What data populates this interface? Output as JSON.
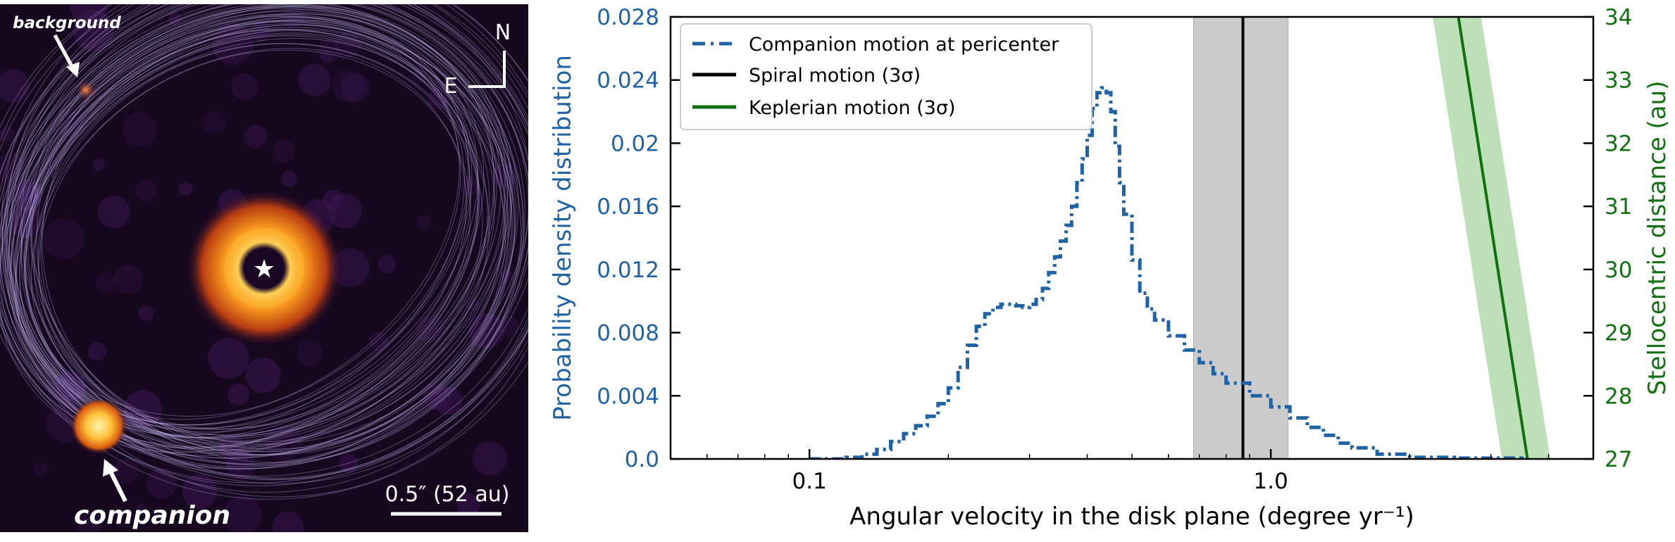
{
  "image_panel": {
    "labels": {
      "background": "background",
      "companion": "companion",
      "north": "N",
      "east": "E",
      "scale_bar": "0.5″ (52 au)"
    },
    "colors": {
      "background": "#16081f",
      "disk_outer": "#e0640f",
      "disk_inner": "#ffcb45",
      "orbit_lines": "#c7bcf5"
    }
  },
  "chart_data": {
    "type": "line",
    "xlabel": "Angular velocity in the disk plane (degree yr⁻¹)",
    "ylabel": "Probability density distribution",
    "ylabel_right": "Stellocentric distance (au)",
    "x_scale": "log",
    "xlim": [
      0.05,
      5.0
    ],
    "ylim": [
      0,
      0.028
    ],
    "ylim_right": [
      27,
      34
    ],
    "xticks": [
      0.1,
      1.0
    ],
    "xtick_labels": [
      "0.1",
      "1.0"
    ],
    "yticks": [
      0.0,
      0.004,
      0.008,
      0.012,
      0.016,
      0.02,
      0.024,
      0.028
    ],
    "ytick_labels": [
      "0.0",
      "0.004",
      "0.008",
      "0.012",
      "0.016",
      "0.02",
      "0.024",
      "0.028"
    ],
    "yticks_right": [
      27,
      28,
      29,
      30,
      31,
      32,
      33,
      34
    ],
    "ytick_labels_right": [
      "27",
      "28",
      "29",
      "30",
      "31",
      "32",
      "33",
      "34"
    ],
    "legend_position": "top-left",
    "colors": {
      "companion": "#1f62a5",
      "spiral": "#000000",
      "keplerian": "#127012",
      "keplerian_band": "#a8d5a0",
      "spiral_band": "#cccccc",
      "left_axis": "#1f62a5",
      "right_axis": "#127012"
    },
    "series": [
      {
        "name": "Companion motion at pericenter",
        "style": "dash-dot step",
        "x": [
          0.1,
          0.12,
          0.13,
          0.14,
          0.15,
          0.16,
          0.17,
          0.18,
          0.19,
          0.2,
          0.21,
          0.22,
          0.23,
          0.24,
          0.25,
          0.26,
          0.27,
          0.28,
          0.29,
          0.3,
          0.31,
          0.32,
          0.33,
          0.34,
          0.35,
          0.36,
          0.37,
          0.38,
          0.39,
          0.4,
          0.41,
          0.42,
          0.43,
          0.44,
          0.45,
          0.46,
          0.47,
          0.48,
          0.5,
          0.52,
          0.54,
          0.56,
          0.6,
          0.65,
          0.7,
          0.75,
          0.8,
          0.9,
          1.0,
          1.1,
          1.2,
          1.3,
          1.4,
          1.5,
          1.7,
          2.0,
          2.5,
          3.5
        ],
        "y": [
          0.0,
          0.0001,
          0.0003,
          0.0006,
          0.0011,
          0.0016,
          0.0021,
          0.0027,
          0.0035,
          0.0045,
          0.0058,
          0.0072,
          0.0084,
          0.0092,
          0.0096,
          0.0098,
          0.0098,
          0.0097,
          0.0096,
          0.0098,
          0.0101,
          0.0108,
          0.0118,
          0.0128,
          0.0138,
          0.0148,
          0.016,
          0.0175,
          0.019,
          0.0205,
          0.0222,
          0.0232,
          0.0235,
          0.0232,
          0.022,
          0.0198,
          0.0175,
          0.0155,
          0.0126,
          0.0105,
          0.0095,
          0.0088,
          0.0078,
          0.0069,
          0.0061,
          0.0054,
          0.0048,
          0.004,
          0.0033,
          0.0026,
          0.002,
          0.0015,
          0.001,
          0.0007,
          0.0003,
          0.0001,
          5e-05,
          0.0
        ]
      },
      {
        "name": "Spiral motion (3σ)",
        "type": "vertical line",
        "x": 0.87,
        "band": [
          0.68,
          1.09
        ]
      },
      {
        "name": "Keplerian motion (3σ)",
        "axis": "right",
        "x": [
          2.55,
          3.6
        ],
        "y": [
          34,
          27
        ],
        "band_halfwidth_x": 0.12
      }
    ]
  }
}
